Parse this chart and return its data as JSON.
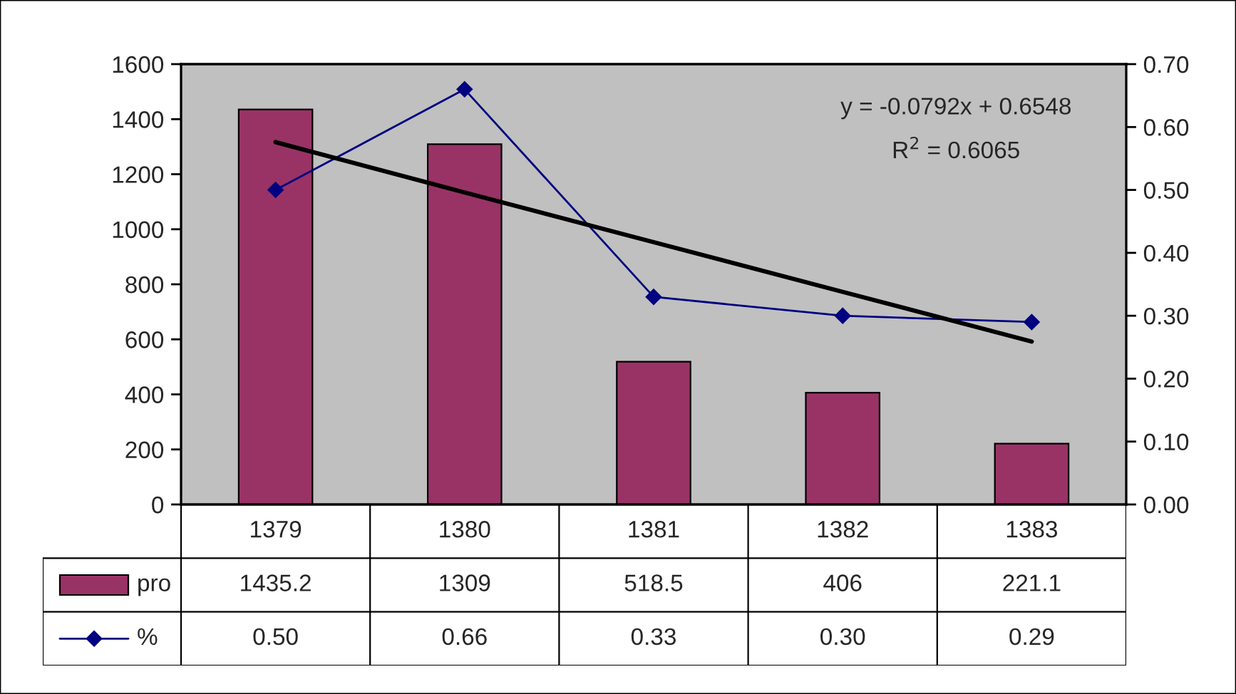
{
  "chart_data": {
    "type": "bar",
    "categories": [
      "1379",
      "1380",
      "1381",
      "1382",
      "1383"
    ],
    "series": [
      {
        "name": "pro",
        "color": "#993366",
        "values": [
          1435.2,
          1309,
          518.5,
          406,
          221.1
        ],
        "value_labels": [
          "1435.2",
          "1309",
          "518.5",
          "406",
          "221.1"
        ]
      },
      {
        "name": "%",
        "type": "line",
        "axis": "y2",
        "color": "#000080",
        "marker": "diamond",
        "values": [
          0.5,
          0.66,
          0.33,
          0.3,
          0.29
        ],
        "value_labels": [
          "0.50",
          "0.66",
          "0.33",
          "0.30",
          "0.29"
        ]
      },
      {
        "type": "line",
        "axis": "y2",
        "color": "#000000",
        "values": [
          0.576,
          0.496,
          0.417,
          0.338,
          0.259
        ]
      }
    ],
    "ylim": [
      0,
      1600
    ],
    "yticks": [
      0,
      200,
      400,
      600,
      800,
      1000,
      1200,
      1400,
      1600
    ],
    "y2lim": [
      0,
      0.7
    ],
    "y2ticks": [
      {
        "value": 0,
        "label": "0.00"
      },
      {
        "value": 0.1,
        "label": "0.10"
      },
      {
        "value": 0.2,
        "label": "0.20"
      },
      {
        "value": 0.3,
        "label": "0.30"
      },
      {
        "value": 0.4,
        "label": "0.40"
      },
      {
        "value": 0.5,
        "label": "0.50"
      },
      {
        "value": 0.6,
        "label": "0.60"
      },
      {
        "value": 0.7,
        "label": "0.70"
      }
    ],
    "annotations": [
      "y = -0.0792x + 0.6548",
      "R$^{2}$ = 0.6065"
    ],
    "grid": false,
    "legend": "bottom left"
  }
}
